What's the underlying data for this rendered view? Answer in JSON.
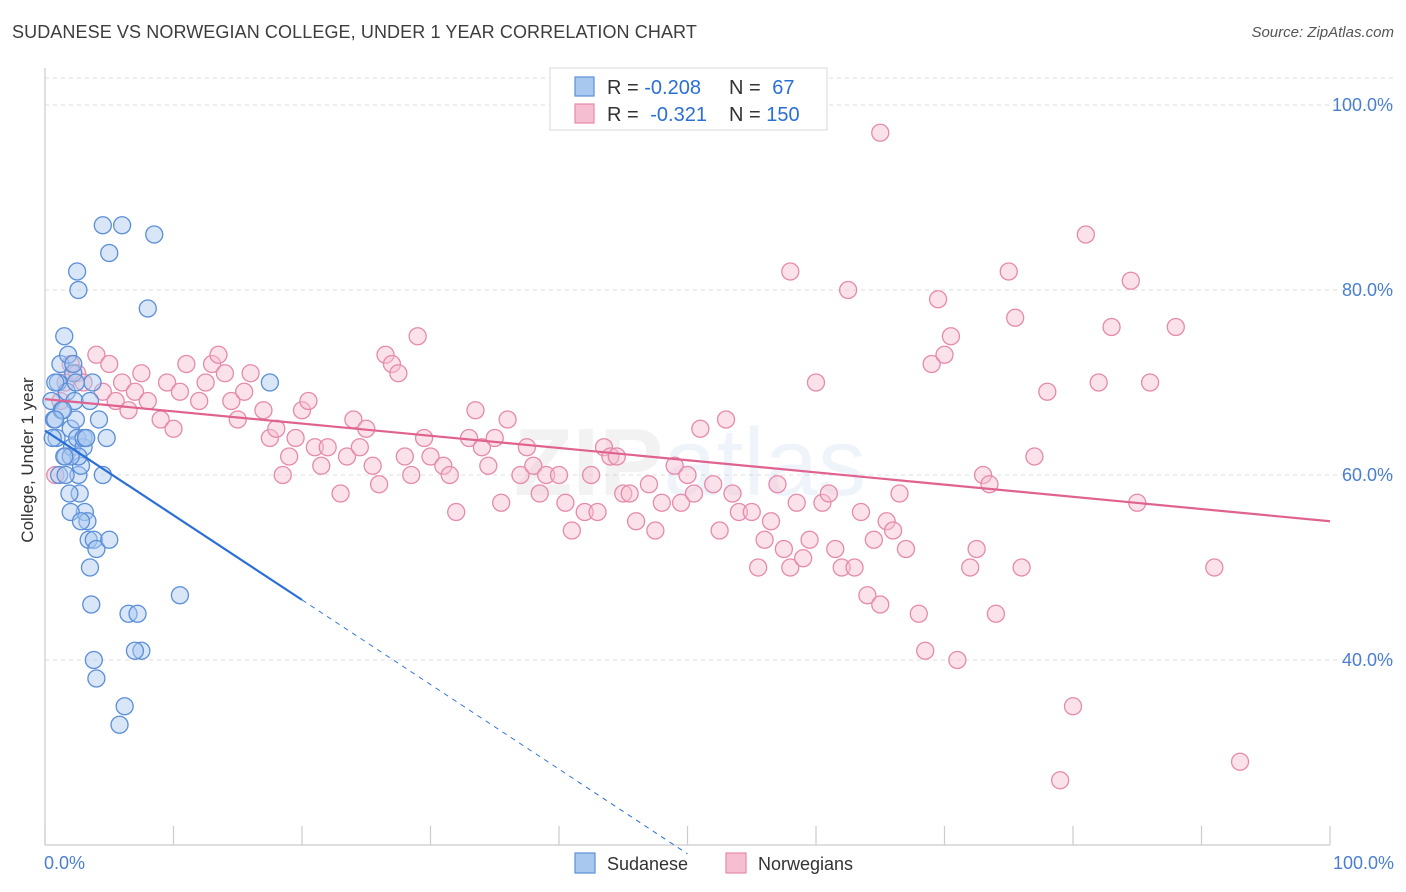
{
  "chart_data": {
    "type": "scatter",
    "title": "SUDANESE VS NORWEGIAN COLLEGE, UNDER 1 YEAR CORRELATION CHART",
    "source": "Source: ZipAtlas.com",
    "xlabel": "",
    "ylabel": "College, Under 1 year",
    "xlim": [
      0,
      100
    ],
    "ylim": [
      20,
      104
    ],
    "x_tick_labels": [
      "0.0%",
      "100.0%"
    ],
    "y_ticks": [
      {
        "value": 100,
        "label": "100.0%"
      },
      {
        "value": 80,
        "label": "80.0%"
      },
      {
        "value": 60,
        "label": "60.0%"
      },
      {
        "value": 40,
        "label": "40.0%"
      }
    ],
    "grid": true,
    "watermark": "ZIPatlas",
    "legend": {
      "entries": [
        {
          "series": "Sudanese",
          "r_label": "R = ",
          "r_value": "-0.208",
          "n_label": "N = ",
          "n_value": "67"
        },
        {
          "series": "Norwegians",
          "r_label": "R = ",
          "r_value": "-0.321",
          "n_label": "N = ",
          "n_value": "150"
        }
      ]
    },
    "colors": {
      "sudanese_fill": "#a9c8f0",
      "sudanese_stroke": "#5b8fd8",
      "sudanese_line": "#2b6fd6",
      "norwegian_fill": "#f6bfd1",
      "norwegian_stroke": "#e68aac",
      "norwegian_line": "#e0628e",
      "grid": "#dddddd",
      "tick_text": "#4a7fd0"
    },
    "series": [
      {
        "name": "Sudanese",
        "trend": {
          "x0": 0,
          "y0": 64.8,
          "x1": 20,
          "y1": 46.5,
          "dash_to_x": 50
        },
        "points": [
          [
            0.5,
            68
          ],
          [
            0.7,
            66
          ],
          [
            0.9,
            64
          ],
          [
            1.0,
            70
          ],
          [
            1.2,
            72
          ],
          [
            1.3,
            67
          ],
          [
            1.5,
            75
          ],
          [
            1.6,
            62
          ],
          [
            1.7,
            69
          ],
          [
            1.8,
            73
          ],
          [
            2.0,
            65
          ],
          [
            2.1,
            63
          ],
          [
            2.2,
            71
          ],
          [
            2.3,
            68
          ],
          [
            2.4,
            66
          ],
          [
            2.5,
            64
          ],
          [
            2.6,
            60
          ],
          [
            2.7,
            58
          ],
          [
            2.8,
            61
          ],
          [
            3.0,
            63
          ],
          [
            3.1,
            56
          ],
          [
            3.3,
            55
          ],
          [
            3.4,
            53
          ],
          [
            3.5,
            50
          ],
          [
            3.6,
            46
          ],
          [
            2.0,
            56
          ],
          [
            2.2,
            72
          ],
          [
            2.4,
            70
          ],
          [
            2.6,
            62
          ],
          [
            3.0,
            64
          ],
          [
            0.6,
            64
          ],
          [
            0.8,
            70
          ],
          [
            1.1,
            60
          ],
          [
            1.4,
            67
          ],
          [
            1.9,
            58
          ],
          [
            2.5,
            82
          ],
          [
            2.6,
            80
          ],
          [
            3.2,
            64
          ],
          [
            3.8,
            53
          ],
          [
            4.0,
            52
          ],
          [
            3.7,
            70
          ],
          [
            3.5,
            68
          ],
          [
            4.2,
            66
          ],
          [
            4.5,
            60
          ],
          [
            4.8,
            64
          ],
          [
            5.0,
            53
          ],
          [
            6.5,
            45
          ],
          [
            7.2,
            45
          ],
          [
            7.5,
            41
          ],
          [
            7.0,
            41
          ],
          [
            6.0,
            87
          ],
          [
            8.5,
            86
          ],
          [
            4.5,
            87
          ],
          [
            5.0,
            84
          ],
          [
            8.0,
            78
          ],
          [
            5.8,
            33
          ],
          [
            6.2,
            35
          ],
          [
            3.8,
            40
          ],
          [
            4.0,
            38
          ],
          [
            10.5,
            47
          ],
          [
            17.5,
            70
          ],
          [
            3.2,
            64
          ],
          [
            2.0,
            62
          ],
          [
            1.5,
            62
          ],
          [
            0.8,
            66
          ],
          [
            1.6,
            60
          ],
          [
            2.8,
            55
          ]
        ]
      },
      {
        "name": "Norwegians",
        "trend": {
          "x0": 0,
          "y0": 68.2,
          "x1": 100,
          "y1": 55.0
        },
        "points": [
          [
            0.8,
            60
          ],
          [
            1.2,
            68
          ],
          [
            1.6,
            70
          ],
          [
            2.0,
            72
          ],
          [
            2.5,
            71
          ],
          [
            3.0,
            70
          ],
          [
            4.0,
            73
          ],
          [
            4.5,
            69
          ],
          [
            5.0,
            72
          ],
          [
            5.5,
            68
          ],
          [
            6.0,
            70
          ],
          [
            6.5,
            67
          ],
          [
            7.0,
            69
          ],
          [
            7.5,
            71
          ],
          [
            8.0,
            68
          ],
          [
            9.0,
            66
          ],
          [
            9.5,
            70
          ],
          [
            10.0,
            65
          ],
          [
            10.5,
            69
          ],
          [
            11.0,
            72
          ],
          [
            12.0,
            68
          ],
          [
            12.5,
            70
          ],
          [
            13.0,
            72
          ],
          [
            13.5,
            73
          ],
          [
            14.0,
            71
          ],
          [
            14.5,
            68
          ],
          [
            15.0,
            66
          ],
          [
            15.5,
            69
          ],
          [
            16.0,
            71
          ],
          [
            17.0,
            67
          ],
          [
            17.5,
            64
          ],
          [
            18.0,
            65
          ],
          [
            18.5,
            60
          ],
          [
            19.0,
            62
          ],
          [
            19.5,
            64
          ],
          [
            20.0,
            67
          ],
          [
            20.5,
            68
          ],
          [
            21.0,
            63
          ],
          [
            21.5,
            61
          ],
          [
            22.0,
            63
          ],
          [
            23.0,
            58
          ],
          [
            23.5,
            62
          ],
          [
            24.0,
            66
          ],
          [
            24.5,
            63
          ],
          [
            25.0,
            65
          ],
          [
            25.5,
            61
          ],
          [
            26.0,
            59
          ],
          [
            26.5,
            73
          ],
          [
            27.0,
            72
          ],
          [
            27.5,
            71
          ],
          [
            28.0,
            62
          ],
          [
            28.5,
            60
          ],
          [
            29.0,
            75
          ],
          [
            29.5,
            64
          ],
          [
            30.0,
            62
          ],
          [
            31.0,
            61
          ],
          [
            31.5,
            60
          ],
          [
            32.0,
            56
          ],
          [
            33.0,
            64
          ],
          [
            33.5,
            67
          ],
          [
            34.0,
            63
          ],
          [
            34.5,
            61
          ],
          [
            35.0,
            64
          ],
          [
            35.5,
            57
          ],
          [
            36.0,
            66
          ],
          [
            37.0,
            60
          ],
          [
            37.5,
            63
          ],
          [
            38.0,
            61
          ],
          [
            38.5,
            58
          ],
          [
            39.0,
            60
          ],
          [
            40.0,
            60
          ],
          [
            40.5,
            57
          ],
          [
            41.0,
            54
          ],
          [
            42.0,
            56
          ],
          [
            42.5,
            60
          ],
          [
            43.0,
            56
          ],
          [
            43.5,
            63
          ],
          [
            44.0,
            62
          ],
          [
            44.5,
            62
          ],
          [
            45.0,
            58
          ],
          [
            45.5,
            58
          ],
          [
            46.0,
            55
          ],
          [
            47.0,
            59
          ],
          [
            47.5,
            54
          ],
          [
            48.0,
            57
          ],
          [
            49.0,
            61
          ],
          [
            49.5,
            57
          ],
          [
            50.0,
            60
          ],
          [
            50.5,
            58
          ],
          [
            51.0,
            65
          ],
          [
            52.0,
            59
          ],
          [
            52.5,
            54
          ],
          [
            53.0,
            66
          ],
          [
            53.5,
            58
          ],
          [
            54.0,
            56
          ],
          [
            55.0,
            56
          ],
          [
            55.5,
            50
          ],
          [
            56.0,
            53
          ],
          [
            56.5,
            55
          ],
          [
            57.0,
            59
          ],
          [
            57.5,
            52
          ],
          [
            58.0,
            50
          ],
          [
            58.5,
            57
          ],
          [
            59.0,
            51
          ],
          [
            59.5,
            53
          ],
          [
            60.0,
            70
          ],
          [
            60.5,
            57
          ],
          [
            61.0,
            58
          ],
          [
            61.5,
            52
          ],
          [
            62.0,
            50
          ],
          [
            62.5,
            80
          ],
          [
            63.0,
            50
          ],
          [
            63.5,
            56
          ],
          [
            64.0,
            47
          ],
          [
            64.5,
            53
          ],
          [
            65.0,
            46
          ],
          [
            65.5,
            55
          ],
          [
            66.0,
            54
          ],
          [
            66.5,
            58
          ],
          [
            67.0,
            52
          ],
          [
            68.0,
            45
          ],
          [
            68.5,
            41
          ],
          [
            69.0,
            72
          ],
          [
            69.5,
            79
          ],
          [
            70.0,
            73
          ],
          [
            70.5,
            75
          ],
          [
            71.0,
            40
          ],
          [
            72.0,
            50
          ],
          [
            72.5,
            52
          ],
          [
            73.0,
            60
          ],
          [
            73.5,
            59
          ],
          [
            74.0,
            45
          ],
          [
            75.0,
            82
          ],
          [
            75.5,
            77
          ],
          [
            76.0,
            50
          ],
          [
            77.0,
            62
          ],
          [
            78.0,
            69
          ],
          [
            79.0,
            27
          ],
          [
            80.0,
            35
          ],
          [
            81.0,
            86
          ],
          [
            82.0,
            70
          ],
          [
            83.0,
            76
          ],
          [
            84.5,
            81
          ],
          [
            85.0,
            57
          ],
          [
            86.0,
            70
          ],
          [
            88.0,
            76
          ],
          [
            91.0,
            50
          ],
          [
            93.0,
            29
          ],
          [
            65.0,
            97
          ],
          [
            58.0,
            82
          ]
        ]
      }
    ]
  }
}
